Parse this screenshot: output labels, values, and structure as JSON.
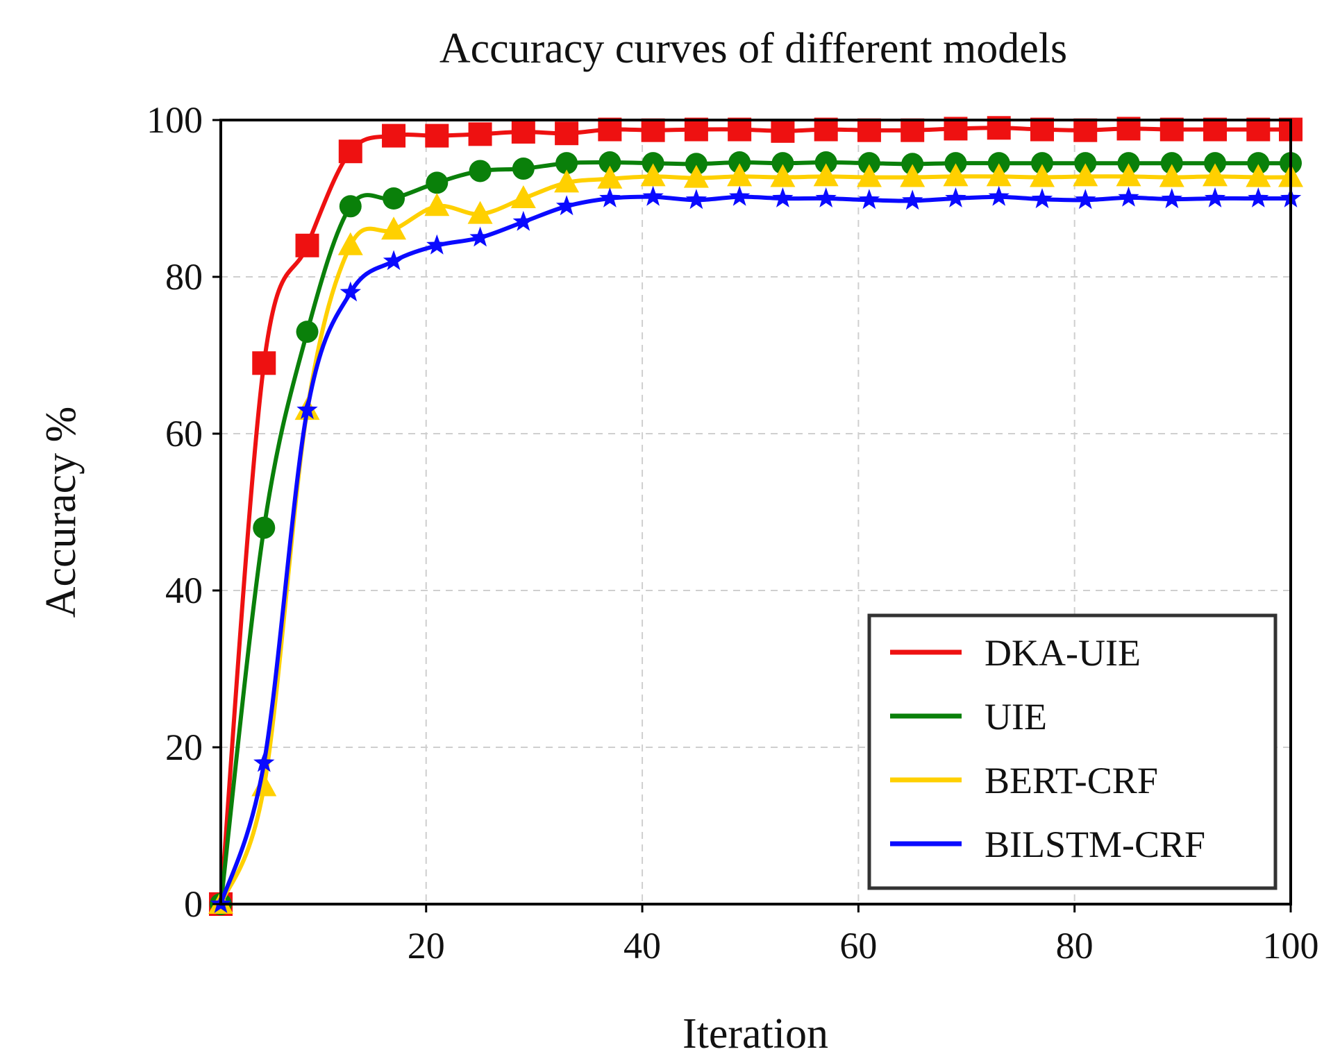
{
  "chart_data": {
    "type": "line",
    "title": "Accuracy curves of different models",
    "xlabel": "Iteration",
    "ylabel": "Accuracy %",
    "xlim": [
      1,
      100
    ],
    "ylim": [
      0,
      100
    ],
    "xticks": [
      20,
      40,
      60,
      80,
      100
    ],
    "yticks": [
      0,
      20,
      40,
      60,
      80,
      100
    ],
    "grid": true,
    "legend_position": "lower-right",
    "x": [
      1,
      5,
      9,
      13,
      17,
      21,
      25,
      29,
      33,
      37,
      41,
      45,
      49,
      53,
      57,
      61,
      65,
      69,
      73,
      77,
      81,
      85,
      89,
      93,
      97,
      100
    ],
    "series": [
      {
        "name": "DKA-UIE",
        "color": "#ee1111",
        "marker": "square",
        "values": [
          0,
          69,
          84,
          96,
          98,
          98,
          98.2,
          98.5,
          98.3,
          98.8,
          98.7,
          98.8,
          98.8,
          98.6,
          98.8,
          98.7,
          98.7,
          98.9,
          99,
          98.8,
          98.7,
          98.9,
          98.8,
          98.8,
          98.8,
          98.8
        ]
      },
      {
        "name": "UIE",
        "color": "#0a800a",
        "marker": "circle",
        "values": [
          0,
          48,
          73,
          89,
          90,
          92,
          93.5,
          93.8,
          94.5,
          94.6,
          94.5,
          94.4,
          94.6,
          94.5,
          94.6,
          94.5,
          94.4,
          94.5,
          94.5,
          94.5,
          94.5,
          94.5,
          94.5,
          94.5,
          94.5,
          94.5
        ]
      },
      {
        "name": "BERT-CRF",
        "color": "#ffd000",
        "marker": "triangle",
        "values": [
          0,
          15,
          63,
          84,
          86,
          89,
          88,
          90,
          92,
          92.5,
          92.8,
          92.6,
          92.8,
          92.7,
          92.8,
          92.7,
          92.7,
          92.8,
          92.8,
          92.7,
          92.8,
          92.8,
          92.7,
          92.8,
          92.7,
          92.7
        ]
      },
      {
        "name": "BILSTM-CRF",
        "color": "#0a0aff",
        "marker": "star",
        "values": [
          0,
          18,
          63,
          78,
          82,
          84,
          85,
          87,
          89,
          90,
          90.2,
          89.8,
          90.2,
          90,
          90,
          89.8,
          89.7,
          90,
          90.2,
          89.9,
          89.8,
          90.1,
          89.9,
          90,
          90,
          90
        ]
      }
    ]
  }
}
